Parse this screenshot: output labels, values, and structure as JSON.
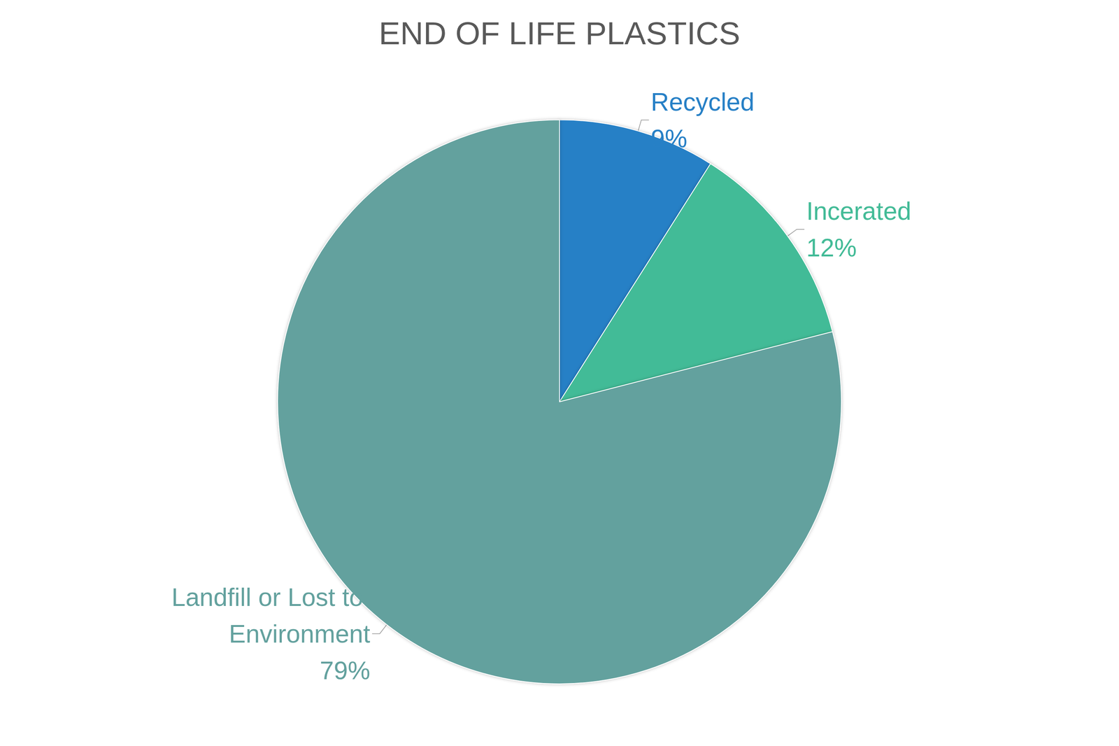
{
  "chart_data": {
    "type": "pie",
    "title": "END OF LIFE PLASTICS",
    "categories": [
      "Recycled",
      "Incerated",
      "Landfill or Lost to Environment"
    ],
    "values": [
      9,
      12,
      79
    ],
    "value_labels": [
      "9%",
      "12%",
      "79%"
    ],
    "colors": [
      "#2780c6",
      "#43bb97",
      "#63a19e"
    ],
    "data_labels": true
  }
}
